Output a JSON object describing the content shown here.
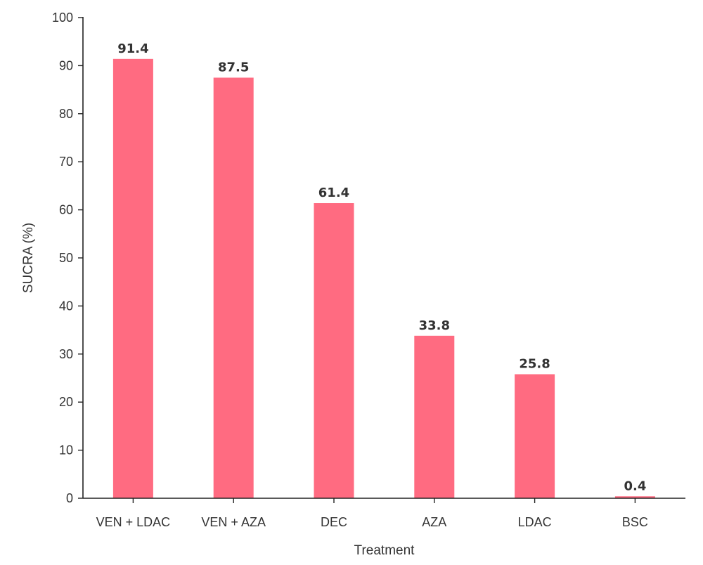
{
  "chart_data": {
    "type": "bar",
    "title": "",
    "xlabel": "Treatment",
    "ylabel": "SUCRA (%)",
    "categories": [
      "VEN + LDAC",
      "VEN + AZA",
      "DEC",
      "AZA",
      "LDAC",
      "BSC"
    ],
    "values": [
      91.4,
      87.5,
      61.4,
      33.8,
      25.8,
      0.4
    ],
    "data_labels": [
      "91.4",
      "87.5",
      "61.4",
      "33.8",
      "25.8",
      "0.4"
    ],
    "ylim": [
      0,
      100
    ],
    "yticks": [
      0,
      10,
      20,
      30,
      40,
      50,
      60,
      70,
      80,
      90,
      100
    ],
    "grid": false,
    "legend": "none",
    "bar_color": "#ff6b81"
  }
}
